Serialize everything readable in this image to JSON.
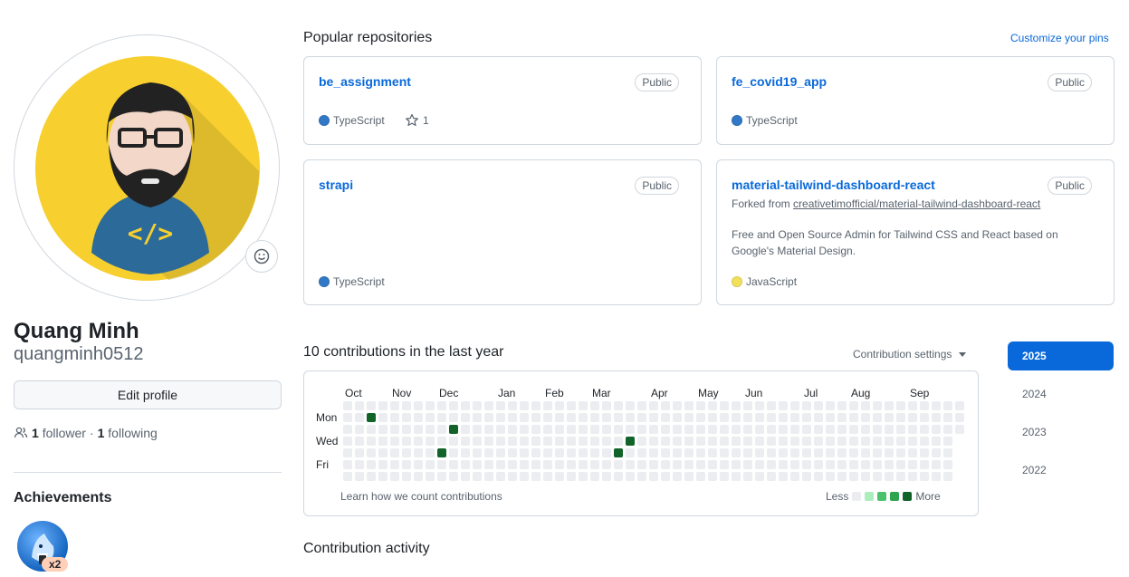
{
  "profile": {
    "full_name": "Quang Minh",
    "login": "quangminh0512",
    "edit_button": "Edit profile",
    "followers_count": "1",
    "followers_label": "follower",
    "separator": "·",
    "following_count": "1",
    "following_label": "following",
    "avatar_icon": "developer-avatar",
    "status_icon": "smiley-icon"
  },
  "achievements": {
    "title": "Achievements",
    "badge_icon": "shark-badge",
    "badge_multiplier": "x2"
  },
  "popular": {
    "title": "Popular repositories",
    "customize_link": "Customize your pins",
    "repos": [
      {
        "name": "be_assignment",
        "visibility": "Public",
        "language": "TypeScript",
        "lang_color": "#3178c6",
        "stars": "1"
      },
      {
        "name": "fe_covid19_app",
        "visibility": "Public",
        "language": "TypeScript",
        "lang_color": "#3178c6"
      },
      {
        "name": "strapi",
        "visibility": "Public",
        "language": "TypeScript",
        "lang_color": "#3178c6"
      },
      {
        "name": "material-tailwind-dashboard-react",
        "visibility": "Public",
        "forked_prefix": "Forked from",
        "forked_from": "creativetimofficial/material-tailwind-dashboard-react",
        "description": "Free and Open Source Admin for Tailwind CSS and React based on Google's Material Design.",
        "language": "JavaScript",
        "lang_color": "#f1e05a"
      }
    ]
  },
  "contributions": {
    "title": "10 contributions in the last year",
    "settings_label": "Contribution settings",
    "months": [
      "Oct",
      "Nov",
      "Dec",
      "Jan",
      "Feb",
      "Mar",
      "Apr",
      "May",
      "Jun",
      "Jul",
      "Aug",
      "Sep"
    ],
    "day_labels": [
      "Mon",
      "Wed",
      "Fri"
    ],
    "learn_link": "Learn how we count contributions",
    "legend_less": "Less",
    "legend_more": "More",
    "legend_colors": [
      "#ebedf0",
      "#aceebb",
      "#4ac26b",
      "#2da44e",
      "#116329"
    ],
    "weeks": 53,
    "last_week_days": 3,
    "active_cells": [
      {
        "week": 2,
        "day": 1,
        "level": 4
      },
      {
        "week": 9,
        "day": 2,
        "level": 4
      },
      {
        "week": 8,
        "day": 4,
        "level": 4
      },
      {
        "week": 23,
        "day": 4,
        "level": 4
      },
      {
        "week": 24,
        "day": 3,
        "level": 4
      }
    ]
  },
  "years": [
    "2025",
    "2024",
    "2023",
    "2022"
  ],
  "active_year": "2025",
  "activity": {
    "title": "Contribution activity"
  }
}
